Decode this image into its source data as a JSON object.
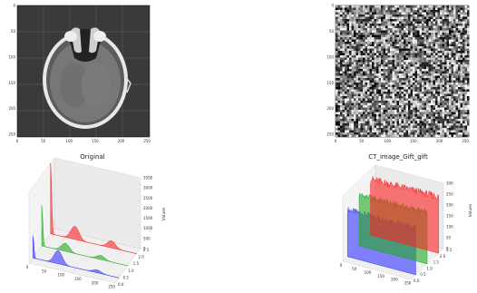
{
  "window": {
    "title": ""
  },
  "panels": {
    "original_image": {
      "x_ticks": [
        "0",
        "50",
        "100",
        "150",
        "200",
        "250"
      ],
      "y_ticks": [
        "0",
        "50",
        "100",
        "150",
        "200",
        "250"
      ]
    },
    "gift_image": {
      "x_ticks": [
        "0",
        "50",
        "100",
        "150",
        "200",
        "250"
      ],
      "y_ticks": [
        "0",
        "50",
        "100",
        "150",
        "200",
        "250"
      ]
    }
  },
  "chart_data": [
    {
      "type": "area",
      "title": "Original",
      "zlabel": "Values",
      "x_ticks": [
        "0",
        "50",
        "100",
        "150",
        "200",
        "250"
      ],
      "y_ticks": [
        "0.0",
        "0.5",
        "1.0",
        "1.5",
        "2.0",
        "2.5"
      ],
      "z_ticks": [
        "0",
        "500",
        "1000",
        "1500",
        "2000",
        "2500",
        "3000",
        "3500"
      ],
      "zlim": [
        0,
        3500
      ],
      "series": [
        {
          "color": "#3333ff",
          "peaks": [
            [
              0,
              1100
            ],
            [
              75,
              650
            ],
            [
              190,
              140
            ]
          ]
        },
        {
          "color": "#22aa22",
          "peaks": [
            [
              0,
              2000
            ],
            [
              70,
              400
            ],
            [
              175,
              200
            ]
          ]
        },
        {
          "color": "#ff2222",
          "peaks": [
            [
              0,
              3500
            ],
            [
              72,
              650
            ],
            [
              180,
              350
            ]
          ]
        }
      ]
    },
    {
      "type": "area",
      "title": "CT_image_Gift_gift",
      "zlabel": "Values",
      "x_ticks": [
        "0",
        "50",
        "100",
        "150",
        "200",
        "250"
      ],
      "y_ticks": [
        "0.0",
        "0.5",
        "1.0",
        "1.5",
        "2.0",
        "2.5"
      ],
      "z_ticks": [
        "0",
        "50",
        "100",
        "150",
        "200",
        "250",
        "300"
      ],
      "zlim": [
        0,
        300
      ],
      "series": [
        {
          "color": "#3333ff",
          "level": 230
        },
        {
          "color": "#22aa22",
          "level": 250
        },
        {
          "color": "#ff2222",
          "level": 275
        }
      ]
    }
  ]
}
